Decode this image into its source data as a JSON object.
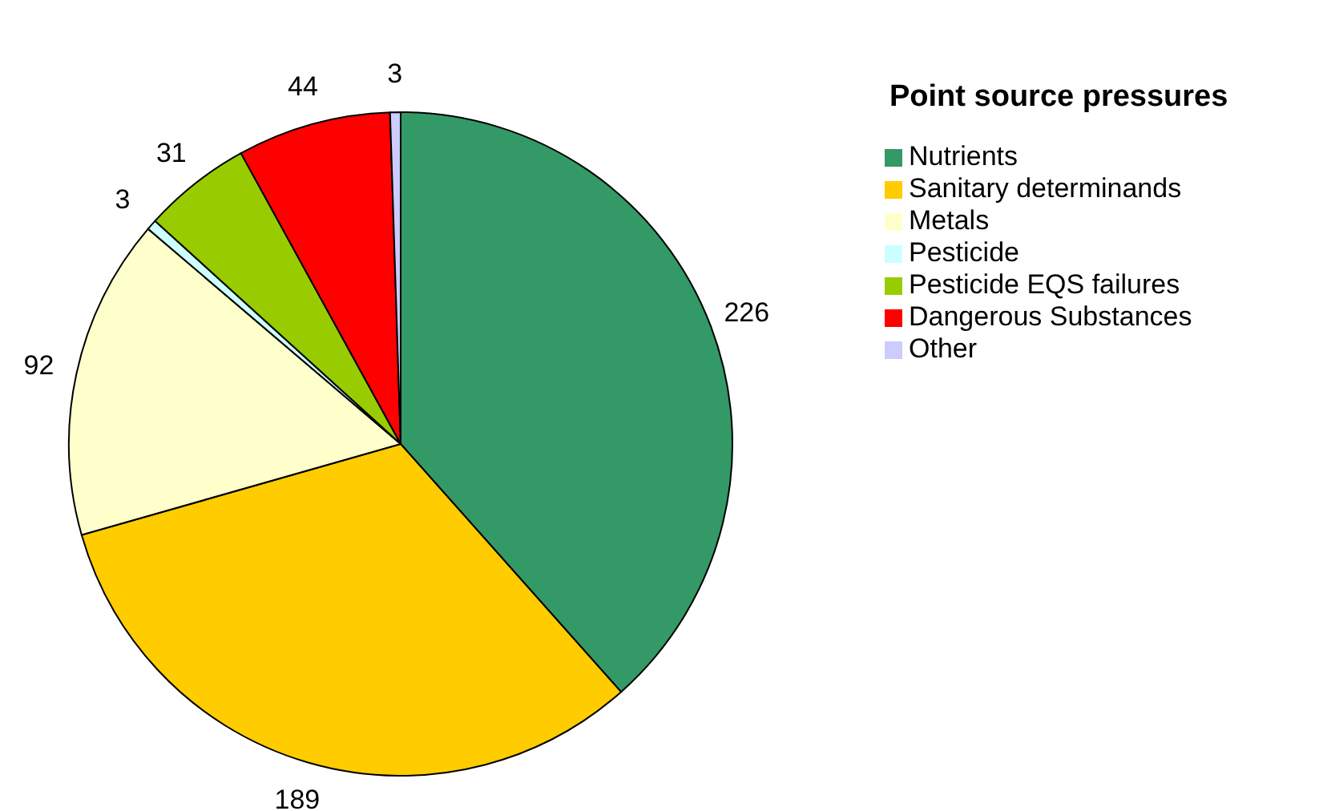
{
  "chart_data": {
    "type": "pie",
    "legend_title": "Point source pressures",
    "legend": "right",
    "data_labels": true,
    "categories": [
      "Nutrients",
      "Sanitary determinands",
      "Metals",
      "Pesticide",
      "Pesticide EQS failures",
      "Dangerous Substances",
      "Other"
    ],
    "values": [
      226,
      189,
      92,
      3,
      31,
      44,
      3
    ],
    "colors": [
      "#339966",
      "#ffcc00",
      "#ffffcc",
      "#ccffff",
      "#99cc00",
      "#ff0000",
      "#ccccff"
    ]
  }
}
